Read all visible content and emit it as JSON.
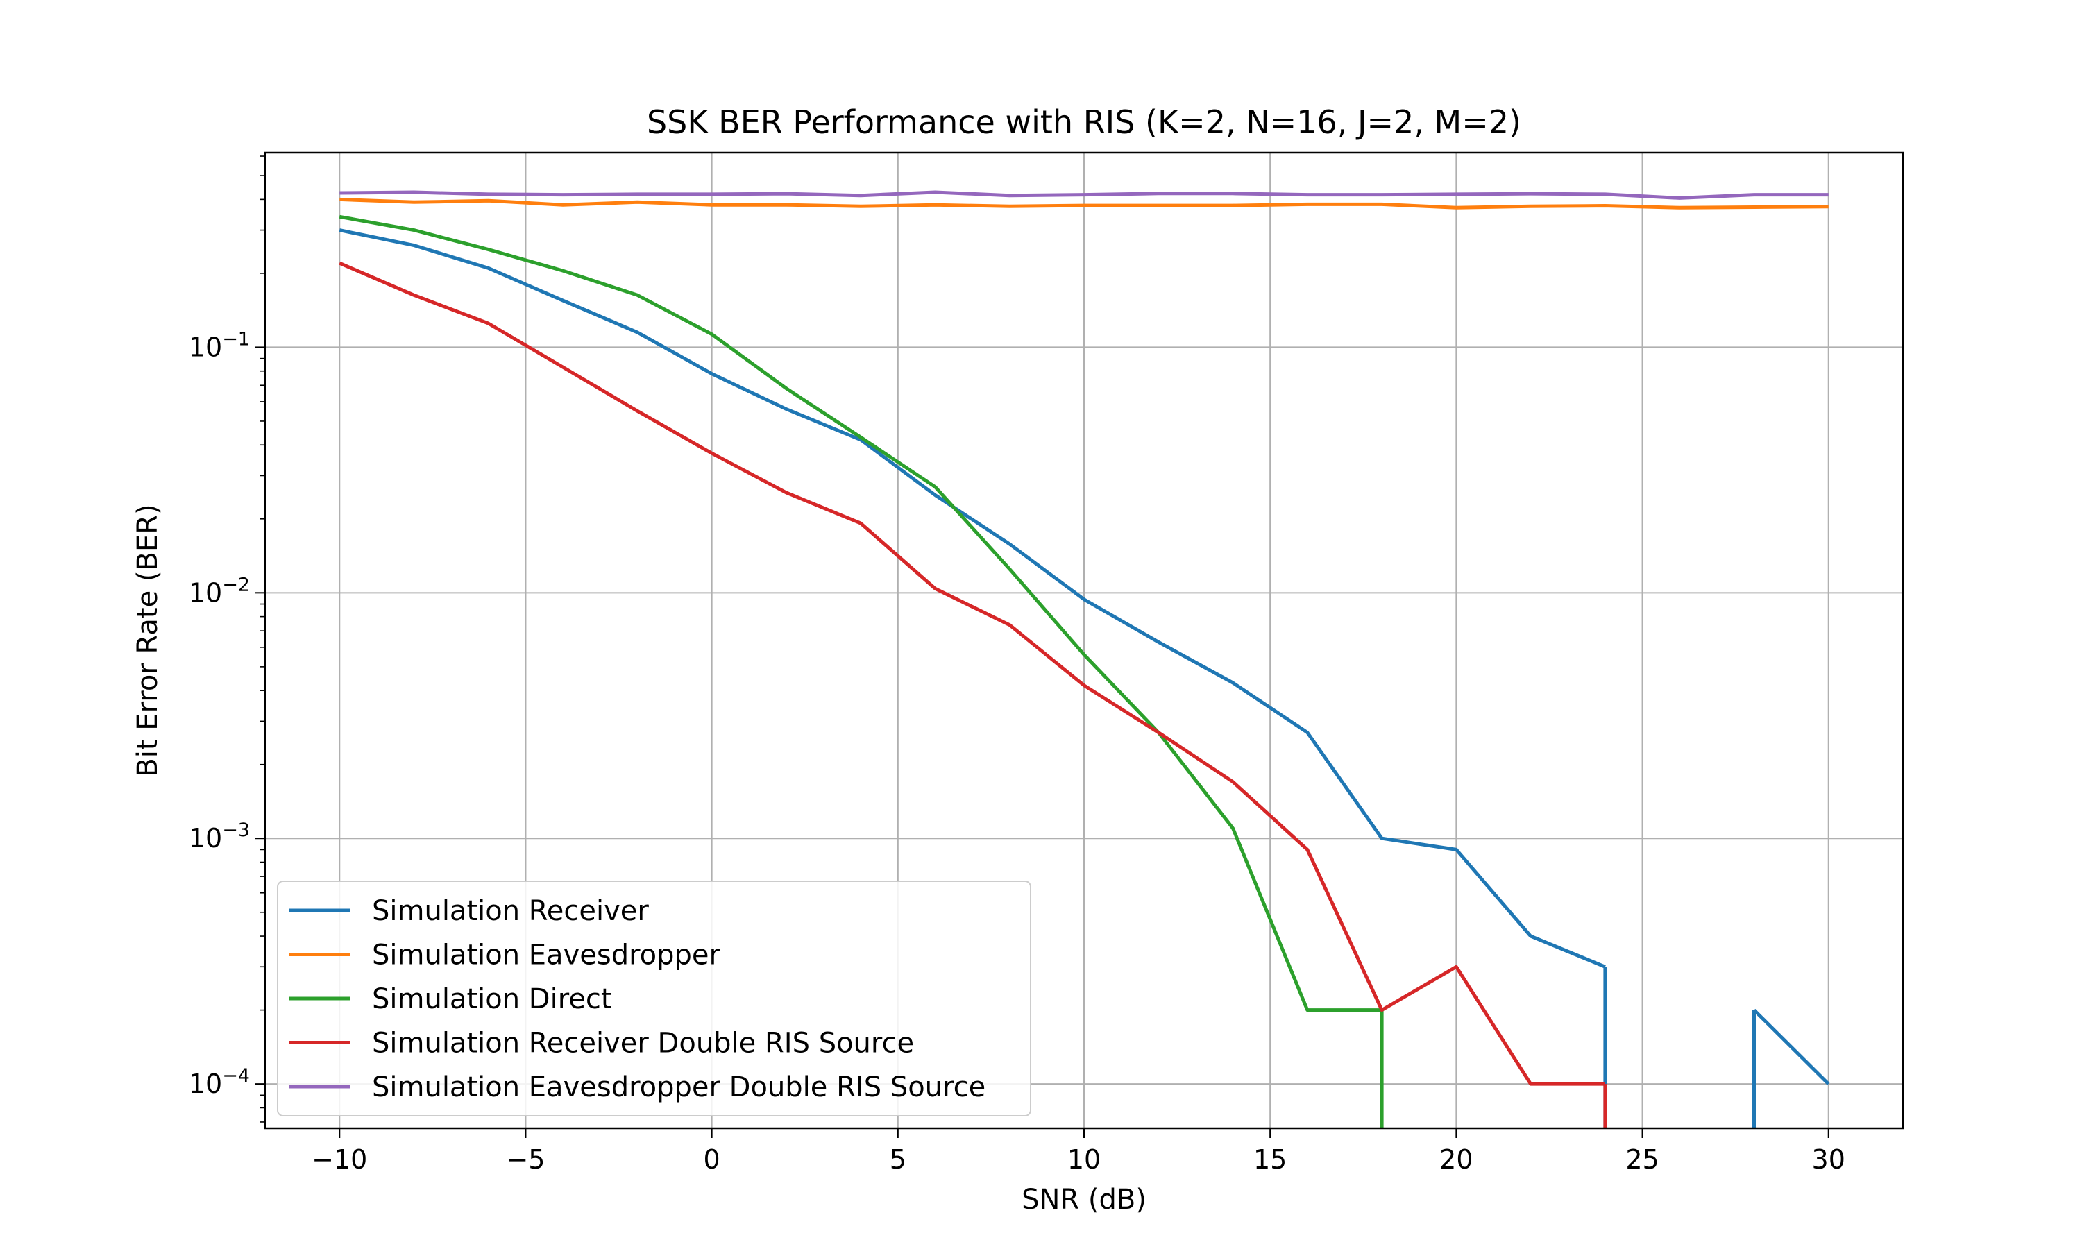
{
  "chart_data": {
    "type": "line",
    "title": "SSK BER Performance with RIS (K=2, N=16, J=2, M=2)",
    "xlabel": "SNR (dB)",
    "ylabel": "Bit Error Rate (BER)",
    "xlim": [
      -12,
      32
    ],
    "ylim": [
      6.6e-05,
      0.62
    ],
    "yscale": "log",
    "grid": true,
    "legend_position": "lower-left",
    "x_ticks": [
      -10,
      -5,
      0,
      5,
      10,
      15,
      20,
      25,
      30
    ],
    "x_tick_labels": [
      "−10",
      "−5",
      "0",
      "5",
      "10",
      "15",
      "20",
      "25",
      "30"
    ],
    "y_ticks": [
      0.0001,
      0.001,
      0.01,
      0.1
    ],
    "y_tick_labels": [
      {
        "base": "10",
        "exp": "−4"
      },
      {
        "base": "10",
        "exp": "−3"
      },
      {
        "base": "10",
        "exp": "−2"
      },
      {
        "base": "10",
        "exp": "−1"
      }
    ],
    "x": [
      -10,
      -8,
      -6,
      -4,
      -2,
      0,
      2,
      4,
      6,
      8,
      10,
      12,
      14,
      16,
      18,
      20,
      22,
      24,
      26,
      28,
      30
    ],
    "series": [
      {
        "name": "Simulation Receiver",
        "color": "#1f77b4",
        "values": [
          0.3,
          0.26,
          0.21,
          0.155,
          0.115,
          0.078,
          0.056,
          0.042,
          0.025,
          0.0158,
          0.0094,
          0.0063,
          0.0043,
          0.0027,
          0.001,
          0.0009,
          0.0004,
          0.0003,
          null,
          0.0002,
          0.0001
        ]
      },
      {
        "name": "Simulation Eavesdropper",
        "color": "#ff7f0e",
        "values": [
          0.4,
          0.39,
          0.395,
          0.38,
          0.39,
          0.38,
          0.38,
          0.375,
          0.38,
          0.375,
          0.378,
          0.378,
          0.378,
          0.382,
          0.382,
          0.37,
          0.375,
          0.377,
          0.37,
          0.372,
          0.374
        ]
      },
      {
        "name": "Simulation Direct",
        "color": "#2ca02c",
        "values": [
          0.34,
          0.3,
          0.25,
          0.205,
          0.163,
          0.113,
          0.068,
          0.043,
          0.027,
          0.0125,
          0.0056,
          0.0027,
          0.0011,
          0.0002,
          0.0002,
          null,
          null,
          null,
          null,
          null,
          null
        ]
      },
      {
        "name": "Simulation Receiver Double RIS Source",
        "color": "#d62728",
        "values": [
          0.22,
          0.163,
          0.125,
          0.083,
          0.055,
          0.037,
          0.0256,
          0.0192,
          0.0104,
          0.0074,
          0.0042,
          0.0027,
          0.0017,
          0.0009,
          0.0002,
          0.0003,
          0.0001,
          0.0001,
          null,
          null,
          null
        ]
      },
      {
        "name": "Simulation Eavesdropper Double RIS Source",
        "color": "#9467bd",
        "values": [
          0.425,
          0.428,
          0.42,
          0.418,
          0.42,
          0.42,
          0.422,
          0.415,
          0.428,
          0.415,
          0.418,
          0.423,
          0.423,
          0.418,
          0.418,
          0.42,
          0.422,
          0.42,
          0.405,
          0.418,
          0.418
        ]
      }
    ],
    "drop_to_zero": [
      {
        "series": 0,
        "from_x": 24,
        "to_x": 28
      },
      {
        "series": 2,
        "from_x": 18
      },
      {
        "series": 3,
        "from_x": 24
      }
    ]
  }
}
